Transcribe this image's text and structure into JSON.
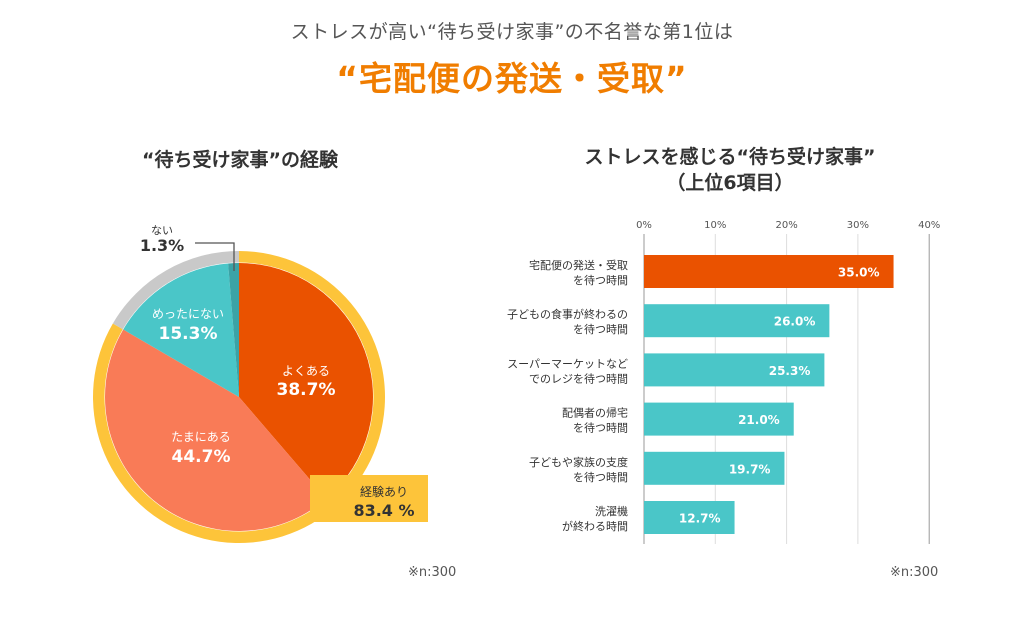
{
  "header": {
    "subtitle": "ストレスが高い“待ち受け家事”の不名誉な第1位は",
    "headline": "“宅配便の発送・受取”"
  },
  "colors": {
    "headline": "#F07D00",
    "often": "#EA5200",
    "sometimes": "#F97B57",
    "rarely": "#4AC6C8",
    "never": "#3BA3A6",
    "ring_experienced": "#FDC43A",
    "ring_not": "#C9C9C9",
    "bar_top": "#EA5200",
    "bar_other": "#4AC6C8"
  },
  "chart_data": [
    {
      "type": "pie",
      "title": "“待ち受け家事”の経験",
      "slices": [
        {
          "label": "よくある",
          "value": 38.7,
          "value_label": "38.7%"
        },
        {
          "label": "たまにある",
          "value": 44.7,
          "value_label": "44.7%"
        },
        {
          "label": "めったにない",
          "value": 15.3,
          "value_label": "15.3%"
        },
        {
          "label": "ない",
          "value": 1.3,
          "value_label": "1.3%"
        }
      ],
      "ring": {
        "label": "経験あり",
        "value": 83.4,
        "value_label": "83.4 %"
      },
      "note": "※n:300"
    },
    {
      "type": "bar",
      "orientation": "horizontal",
      "title_line1": "ストレスを感じる“待ち受け家事”",
      "title_line2": "（上位6項目）",
      "xlim": [
        0,
        40
      ],
      "ticks": [
        {
          "value": 0,
          "label": "0%"
        },
        {
          "value": 10,
          "label": "10%"
        },
        {
          "value": 20,
          "label": "20%"
        },
        {
          "value": 30,
          "label": "30%"
        },
        {
          "value": 40,
          "label": "40%"
        }
      ],
      "bars": [
        {
          "line1": "宅配便の発送・受取",
          "line2": "を待つ時間",
          "value": 35.0,
          "value_label": "35.0%"
        },
        {
          "line1": "子どもの食事が終わるの",
          "line2": "を待つ時間",
          "value": 26.0,
          "value_label": "26.0%"
        },
        {
          "line1": "スーパーマーケットなど",
          "line2": "でのレジを待つ時間",
          "value": 25.3,
          "value_label": "25.3%"
        },
        {
          "line1": "配偶者の帰宅",
          "line2": "を待つ時間",
          "value": 21.0,
          "value_label": "21.0%"
        },
        {
          "line1": "子どもや家族の支度",
          "line2": "を待つ時間",
          "value": 19.7,
          "value_label": "19.7%"
        },
        {
          "line1": "洗濯機",
          "line2": "が終わる時間",
          "value": 12.7,
          "value_label": "12.7%"
        }
      ],
      "note": "※n:300"
    }
  ]
}
